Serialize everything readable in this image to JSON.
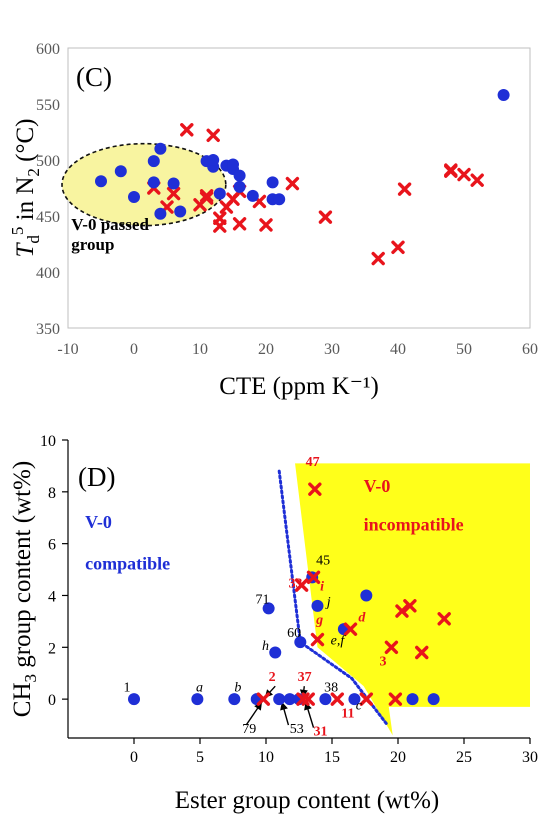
{
  "chart_data": [
    {
      "type": "scatter",
      "panel_label": "(C)",
      "xlabel": "CTE (ppm K⁻¹)",
      "ylabel_parts": {
        "T": "T",
        "sub_d": "d",
        "sup_5": "5",
        "rest": " in N",
        "sub_2": "2",
        "unit": " (°C)"
      },
      "xlim": [
        -10,
        60
      ],
      "ylim": [
        350,
        600
      ],
      "xticks": [
        -10,
        0,
        10,
        20,
        30,
        40,
        50,
        60
      ],
      "yticks": [
        350,
        400,
        450,
        500,
        550,
        600
      ],
      "annotation": [
        "V-0 passed",
        "group"
      ],
      "series": [
        {
          "marker": "circle",
          "color": "#1f2fd6",
          "points": [
            [
              -5,
              481
            ],
            [
              -2,
              490
            ],
            [
              0,
              467
            ],
            [
              3,
              499
            ],
            [
              3,
              480
            ],
            [
              4,
              510
            ],
            [
              4,
              452
            ],
            [
              6,
              479
            ],
            [
              7,
              454
            ],
            [
              11,
              499
            ],
            [
              12,
              494
            ],
            [
              12,
              500
            ],
            [
              13,
              470
            ],
            [
              14,
              495
            ],
            [
              15,
              492
            ],
            [
              15,
              496
            ],
            [
              16,
              486
            ],
            [
              16,
              476
            ],
            [
              18,
              468
            ],
            [
              21,
              465
            ],
            [
              21,
              480
            ],
            [
              22,
              465
            ],
            [
              56,
              558
            ]
          ]
        },
        {
          "marker": "x",
          "color": "#e8141c",
          "points": [
            [
              3,
              475
            ],
            [
              5,
              458
            ],
            [
              6,
              470
            ],
            [
              8,
              527
            ],
            [
              10,
              460
            ],
            [
              11,
              468
            ],
            [
              11,
              466
            ],
            [
              12,
              522
            ],
            [
              13,
              448
            ],
            [
              13,
              441
            ],
            [
              14,
              458
            ],
            [
              15,
              465
            ],
            [
              16,
              443
            ],
            [
              16,
              472
            ],
            [
              19,
              463
            ],
            [
              20,
              442
            ],
            [
              24,
              479
            ],
            [
              29,
              449
            ],
            [
              37,
              412
            ],
            [
              40,
              422
            ],
            [
              41,
              474
            ],
            [
              48,
              491
            ],
            [
              48,
              490
            ],
            [
              50,
              487
            ],
            [
              52,
              482
            ]
          ]
        }
      ]
    },
    {
      "type": "scatter",
      "panel_label": "(D)",
      "xlabel": "Ester group content (wt%)",
      "ylabel_parts": {
        "pre": "CH",
        "sub_3": "3",
        "post": " group content (wt%)"
      },
      "xlim": [
        -5,
        30
      ],
      "ylim": [
        -1.5,
        10
      ],
      "xticks": [
        0,
        5,
        10,
        15,
        20,
        25,
        30
      ],
      "yticks": [
        0,
        2,
        4,
        6,
        8,
        10
      ],
      "region_labels": {
        "compatible": [
          "V-0",
          "compatible"
        ],
        "incompatible": [
          "V-0",
          "incompatible"
        ]
      },
      "series": [
        {
          "marker": "circle",
          "color": "#1f2fd6",
          "points": [
            [
              0,
              0
            ],
            [
              4.8,
              0
            ],
            [
              7.6,
              0
            ],
            [
              9.3,
              0
            ],
            [
              11.0,
              0
            ],
            [
              11.8,
              0
            ],
            [
              12.5,
              0
            ],
            [
              14.5,
              0
            ],
            [
              16.7,
              0
            ],
            [
              21.1,
              0
            ],
            [
              22.7,
              0
            ],
            [
              10.2,
              3.5
            ],
            [
              10.7,
              1.8
            ],
            [
              12.6,
              2.2
            ],
            [
              13.9,
              3.6
            ],
            [
              15.9,
              2.7
            ],
            [
              17.6,
              4.0
            ],
            [
              13.5,
              4.7
            ]
          ]
        },
        {
          "marker": "x",
          "color": "#e8141c",
          "points": [
            [
              9.8,
              0
            ],
            [
              12.8,
              0
            ],
            [
              13.2,
              0
            ],
            [
              15.4,
              0
            ],
            [
              17.6,
              0
            ],
            [
              19.8,
              0
            ],
            [
              13.7,
              8.1
            ],
            [
              12.7,
              4.4
            ],
            [
              13.6,
              4.7
            ],
            [
              13.9,
              2.3
            ],
            [
              16.4,
              2.7
            ],
            [
              19.5,
              2.0
            ],
            [
              20.3,
              3.4
            ],
            [
              20.9,
              3.6
            ],
            [
              21.8,
              1.8
            ],
            [
              23.5,
              3.1
            ]
          ]
        }
      ],
      "labels_black": [
        {
          "t": "1",
          "x": -0.8,
          "y": 0.3,
          "i": false
        },
        {
          "t": "a",
          "x": 4.7,
          "y": 0.3,
          "i": true
        },
        {
          "t": "b",
          "x": 7.6,
          "y": 0.3,
          "i": true
        },
        {
          "t": "71",
          "x": 9.2,
          "y": 3.7,
          "i": false
        },
        {
          "t": "h",
          "x": 9.7,
          "y": 1.9,
          "i": true
        },
        {
          "t": "60",
          "x": 11.6,
          "y": 2.4,
          "i": false
        },
        {
          "t": "45",
          "x": 13.8,
          "y": 5.2,
          "i": false
        },
        {
          "t": "j",
          "x": 14.6,
          "y": 3.6,
          "i": true
        },
        {
          "t": "e,f",
          "x": 14.9,
          "y": 2.1,
          "i": true
        },
        {
          "t": "38",
          "x": 14.4,
          "y": 0.3,
          "i": false
        },
        {
          "t": "c",
          "x": 16.8,
          "y": -0.4,
          "i": true
        },
        {
          "t": "79",
          "x": 8.2,
          "y": -1.3,
          "i": false
        },
        {
          "t": "53",
          "x": 11.8,
          "y": -1.3,
          "i": false
        }
      ],
      "labels_red": [
        {
          "t": "47",
          "x": 13.0,
          "y": 9.0,
          "i": false
        },
        {
          "t": "33",
          "x": 11.7,
          "y": 4.3,
          "i": false
        },
        {
          "t": "i",
          "x": 14.1,
          "y": 4.2,
          "i": true
        },
        {
          "t": "g",
          "x": 13.8,
          "y": 2.9,
          "i": true
        },
        {
          "t": "d",
          "x": 17.0,
          "y": 3.0,
          "i": true
        },
        {
          "t": "3",
          "x": 18.6,
          "y": 1.3,
          "i": false
        },
        {
          "t": "2",
          "x": 10.2,
          "y": 0.7,
          "i": false
        },
        {
          "t": "37",
          "x": 12.4,
          "y": 0.7,
          "i": false
        },
        {
          "t": "11",
          "x": 15.7,
          "y": -0.7,
          "i": false
        },
        {
          "t": "31",
          "x": 13.6,
          "y": -1.4,
          "i": false
        }
      ],
      "arrows": [
        {
          "from": [
            8.5,
            -1.0
          ],
          "to": [
            9.7,
            -0.1
          ]
        },
        {
          "from": [
            11.7,
            -1.0
          ],
          "to": [
            11.2,
            -0.1
          ]
        },
        {
          "from": [
            13.6,
            -1.1
          ],
          "to": [
            13.0,
            -0.1
          ]
        },
        {
          "from": [
            10.7,
            0.5
          ],
          "to": [
            9.9,
            0.05
          ]
        },
        {
          "from": [
            12.9,
            0.5
          ],
          "to": [
            12.8,
            0.05
          ]
        }
      ]
    }
  ]
}
